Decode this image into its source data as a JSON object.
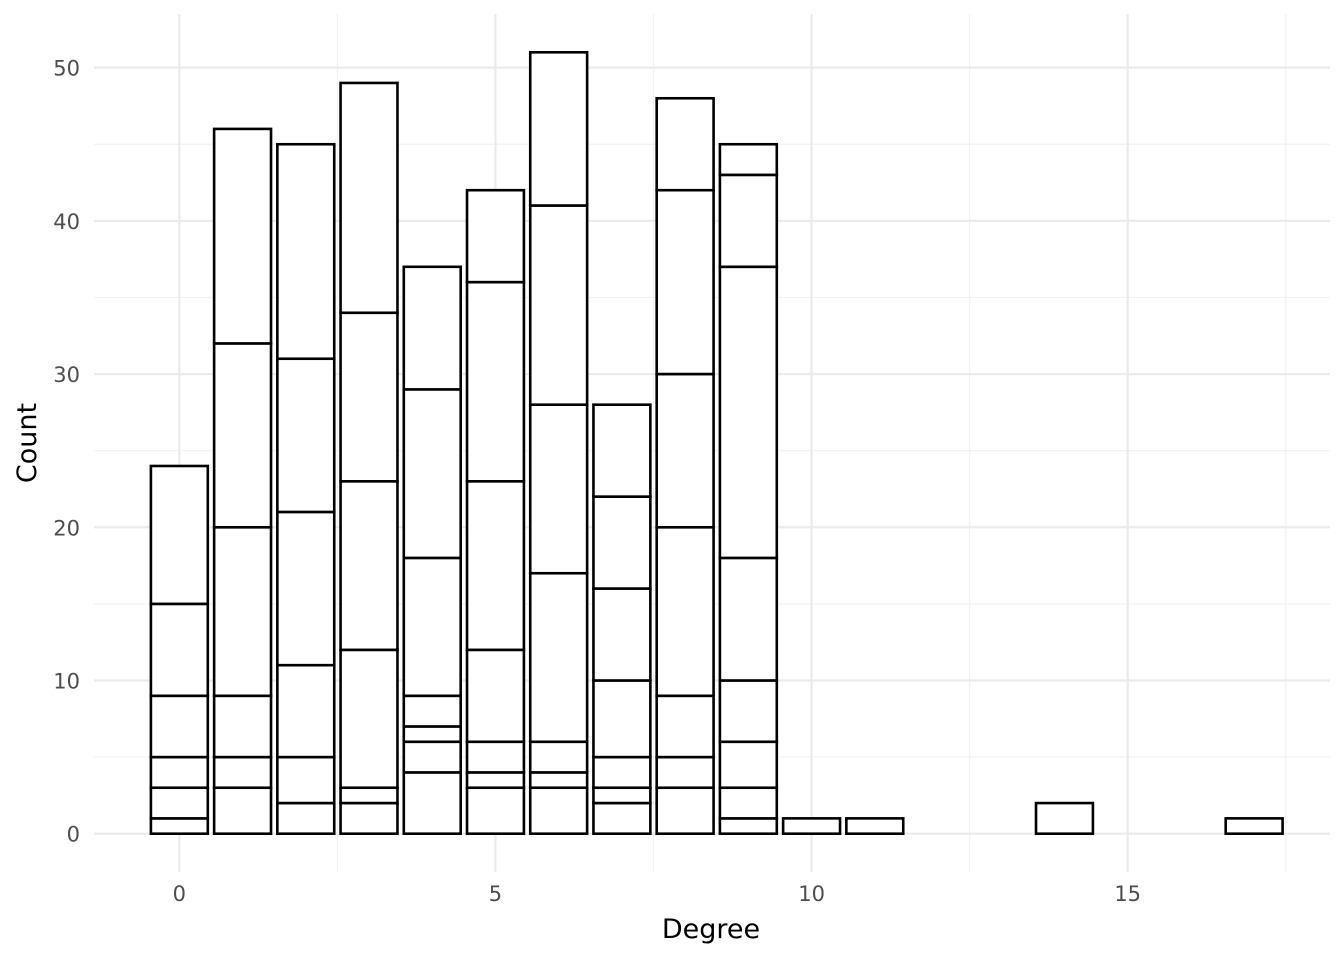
{
  "chart_data": {
    "type": "bar",
    "stacked": true,
    "xlabel": "Degree",
    "ylabel": "Count",
    "xlim": [
      -1.35,
      18.2
    ],
    "ylim": [
      -2.5,
      53.5
    ],
    "x_ticks": [
      0,
      5,
      10,
      15
    ],
    "y_ticks": [
      0,
      10,
      20,
      30,
      40,
      50
    ],
    "grid": true,
    "bar_fill": "#ffffff",
    "bar_outline": "#000000",
    "bars": [
      {
        "x": 0,
        "segments": [
          1,
          2,
          2,
          4,
          6,
          9
        ]
      },
      {
        "x": 1,
        "segments": [
          3,
          2,
          4,
          11,
          12,
          14
        ]
      },
      {
        "x": 2,
        "segments": [
          2,
          3,
          6,
          10,
          10,
          14
        ]
      },
      {
        "x": 3,
        "segments": [
          2,
          1,
          9,
          11,
          11,
          15
        ]
      },
      {
        "x": 4,
        "segments": [
          4,
          2,
          1,
          2,
          9,
          11,
          8
        ]
      },
      {
        "x": 5,
        "segments": [
          3,
          1,
          2,
          6,
          11,
          13,
          6
        ]
      },
      {
        "x": 6,
        "segments": [
          3,
          1,
          2,
          11,
          11,
          13,
          10
        ]
      },
      {
        "x": 7,
        "segments": [
          2,
          1,
          2,
          5,
          6,
          6,
          6
        ]
      },
      {
        "x": 8,
        "segments": [
          3,
          2,
          4,
          11,
          10,
          12,
          6
        ]
      },
      {
        "x": 9,
        "segments": [
          1,
          2,
          3,
          4,
          8,
          19,
          6,
          2
        ]
      },
      {
        "x": 10,
        "segments": [
          1
        ]
      },
      {
        "x": 11,
        "segments": [
          1
        ]
      },
      {
        "x": 14,
        "segments": [
          2
        ]
      },
      {
        "x": 17,
        "segments": [
          1
        ]
      }
    ]
  }
}
